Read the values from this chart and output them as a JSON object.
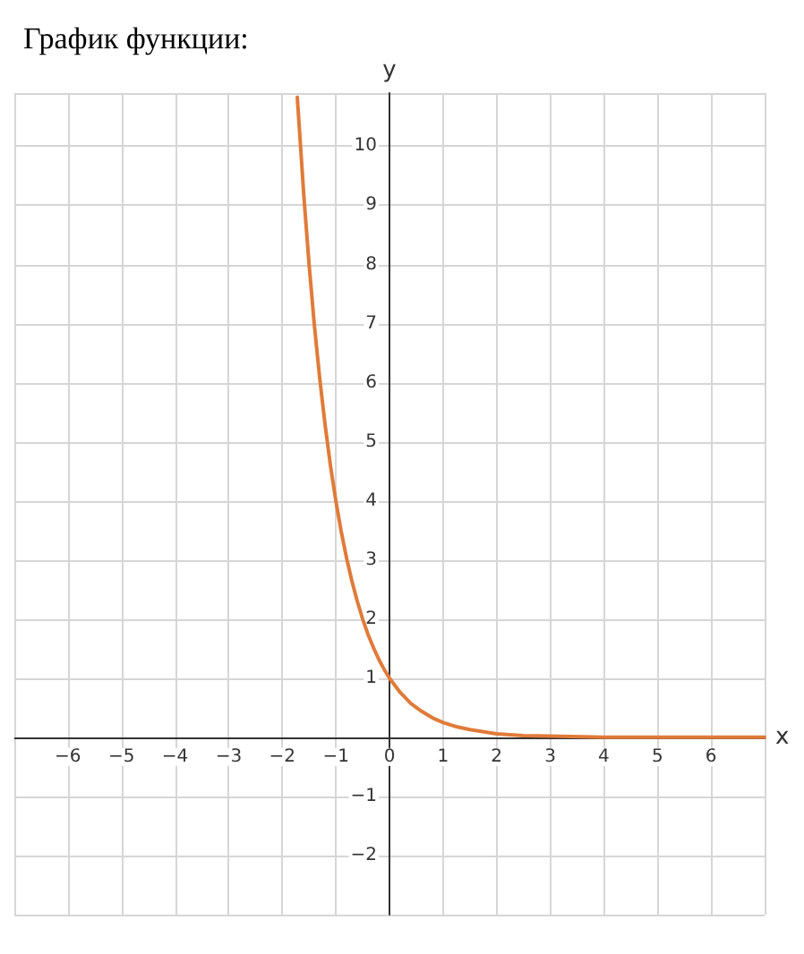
{
  "chart_data": {
    "type": "line",
    "title": "График функции:",
    "xlabel": "x",
    "ylabel": "y",
    "x": [
      -1.72,
      -1.6,
      -1.5,
      -1.4,
      -1.3,
      -1.2,
      -1.1,
      -1,
      -0.9,
      -0.8,
      -0.7,
      -0.6,
      -0.5,
      -0.4,
      -0.3,
      -0.2,
      -0.1,
      0,
      0.2,
      0.4,
      0.6,
      0.8,
      1,
      1.25,
      1.5,
      2,
      2.5,
      3,
      4,
      5,
      6,
      7
    ],
    "series": [
      {
        "color": "#e07b39",
        "values": [
          10.83,
          9.19,
          8,
          6.96,
          6.06,
          5.28,
          4.59,
          4,
          3.48,
          3.03,
          2.64,
          2.3,
          2,
          1.74,
          1.52,
          1.32,
          1.15,
          1,
          0.76,
          0.57,
          0.44,
          0.33,
          0.25,
          0.18,
          0.13,
          0.06,
          0.03,
          0.02,
          0,
          0,
          0,
          0
        ]
      }
    ],
    "xlim": [
      -7,
      7
    ],
    "ylim": [
      -3,
      10.9
    ],
    "xticks": [
      -6,
      -5,
      -4,
      -3,
      -2,
      -1,
      0,
      1,
      2,
      3,
      4,
      5,
      6
    ],
    "yticks": [
      -2,
      -1,
      1,
      2,
      3,
      4,
      5,
      6,
      7,
      8,
      9,
      10
    ],
    "grid": true,
    "marker": "none",
    "line_style": "solid"
  }
}
